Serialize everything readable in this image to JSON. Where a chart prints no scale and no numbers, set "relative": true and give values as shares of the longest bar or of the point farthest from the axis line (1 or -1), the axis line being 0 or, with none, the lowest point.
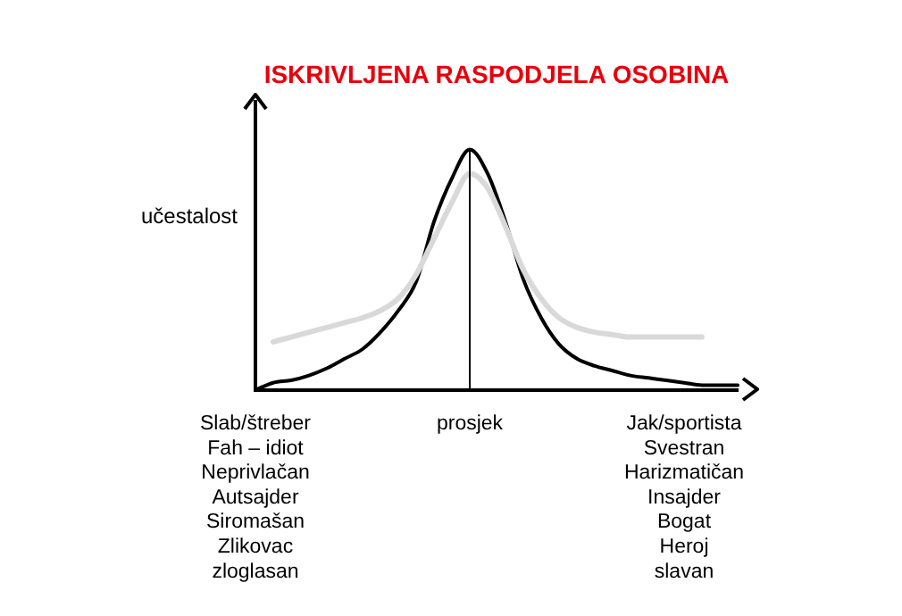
{
  "chart_data": {
    "type": "line",
    "title": "ISKRIVLJENA RASPODJELA OSOBINA",
    "ylabel": "učestalost",
    "relative": true,
    "legend": false,
    "grid": false,
    "tick_labels": "x",
    "marker": "none",
    "line_style": "solid",
    "categories": [
      "Slab/štreber\nFah – idiot\nNeprivlačan\nAutsajder\nSiromašan\nZlikovac\nzloglasan",
      null,
      null,
      null,
      null,
      null,
      null,
      null,
      null,
      null,
      null,
      null,
      "prosjek",
      null,
      null,
      null,
      null,
      null,
      null,
      null,
      null,
      null,
      null,
      null,
      "Jak/sportista\nSvestran\nHarizmatičan\nInsajder\nBogat\nHeroj\nslavan",
      null,
      null,
      null
    ],
    "series": [
      {
        "color": "#d9d9d9",
        "values": [
          null,
          0.2,
          0.22,
          0.24,
          0.26,
          0.28,
          0.3,
          0.33,
          0.38,
          0.48,
          0.63,
          0.78,
          0.9,
          0.84,
          0.68,
          0.5,
          0.38,
          0.3,
          0.26,
          0.24,
          0.23,
          0.22,
          0.22,
          0.22,
          0.22,
          0.22,
          null,
          null
        ]
      },
      {
        "color": "#000000",
        "values": [
          0,
          0.03,
          0.04,
          0.06,
          0.09,
          0.13,
          0.17,
          0.24,
          0.33,
          0.45,
          0.7,
          0.88,
          1,
          0.9,
          0.7,
          0.46,
          0.3,
          0.19,
          0.13,
          0.1,
          0.08,
          0.06,
          0.05,
          0.04,
          0.03,
          0.02,
          0.02,
          0.02
        ]
      }
    ],
    "ref_lines": [
      {
        "axis": "x",
        "value": "prosjek",
        "color": "#000000"
      }
    ]
  }
}
